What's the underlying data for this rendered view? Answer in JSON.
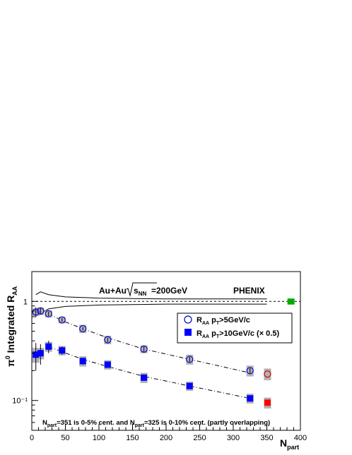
{
  "chart_data": {
    "type": "scatter",
    "title": "",
    "ylabel": "π⁰ Integrated R_AA",
    "xlabel": "N_part",
    "xlim": [
      0,
      400
    ],
    "ylim": [
      0.05,
      2.0
    ],
    "yscale": "log",
    "x_ticks": [
      "0",
      "50",
      "100",
      "150",
      "200",
      "250",
      "300",
      "350",
      "400"
    ],
    "y_ticks": [
      "10⁻¹",
      "1"
    ],
    "grid": false,
    "legend_position": "top-right",
    "annotations": {
      "system": "Au+Au",
      "energy": "=200GeV",
      "experiment": "PHENIX",
      "footnote": "N_part=351 is 0-5% cent. and N_part=325 is 0-10% cent. (partly overlapping)"
    },
    "series": [
      {
        "name": "R_AA p_T>5GeV/c",
        "marker": "open-circle",
        "color": "#0000cc",
        "x": [
          6,
          13,
          25,
          45,
          76,
          113,
          167,
          235,
          325
        ],
        "y": [
          0.78,
          0.8,
          0.75,
          0.65,
          0.53,
          0.41,
          0.33,
          0.26,
          0.2
        ],
        "stat_err": [
          0.09,
          0.06,
          0.04,
          0.03,
          0.02,
          0.02,
          0.02,
          0.015,
          0.012
        ],
        "sys_err": [
          0.07,
          0.07,
          0.06,
          0.05,
          0.05,
          0.04,
          0.03,
          0.03,
          0.025
        ]
      },
      {
        "name": "R_AA p_T>10GeV/c (× 0.5)",
        "marker": "filled-square",
        "color": "#0000ff",
        "x": [
          6,
          13,
          25,
          45,
          76,
          113,
          167,
          235,
          325
        ],
        "y": [
          0.29,
          0.3,
          0.35,
          0.32,
          0.25,
          0.23,
          0.17,
          0.14,
          0.105
        ],
        "stat_err": [
          0.09,
          0.07,
          0.05,
          0.03,
          0.02,
          0.015,
          0.012,
          0.01,
          0.008
        ],
        "sys_err": [
          0.05,
          0.04,
          0.04,
          0.035,
          0.03,
          0.025,
          0.02,
          0.015,
          0.012
        ]
      },
      {
        "name": "",
        "marker": "open-circle",
        "color": "#cc0000",
        "x": [
          351
        ],
        "y": [
          0.185
        ],
        "sys_err": [
          0.025
        ]
      },
      {
        "name": "",
        "marker": "filled-square",
        "color": "#ff0000",
        "x": [
          351
        ],
        "y": [
          0.095
        ],
        "sys_err": [
          0.012
        ]
      }
    ],
    "fit_curves": [
      {
        "style": "dash-dot",
        "x": [
          25,
          45,
          76,
          113,
          167,
          235,
          325
        ],
        "y": [
          0.75,
          0.64,
          0.53,
          0.43,
          0.33,
          0.26,
          0.19
        ]
      },
      {
        "style": "dash-dot",
        "x": [
          25,
          45,
          76,
          113,
          167,
          235,
          325
        ],
        "y": [
          0.35,
          0.31,
          0.26,
          0.22,
          0.175,
          0.14,
          0.105
        ]
      }
    ],
    "normalization_band": {
      "upper": {
        "x": [
          6,
          13,
          25,
          50,
          100,
          150,
          200,
          250,
          300,
          350
        ],
        "y": [
          1.17,
          1.25,
          1.17,
          1.11,
          1.08,
          1.07,
          1.06,
          1.06,
          1.06,
          1.06
        ]
      },
      "lower": {
        "x": [
          6,
          13,
          25,
          50,
          100,
          150,
          200,
          250,
          300,
          350
        ],
        "y": [
          0.83,
          0.76,
          0.84,
          0.89,
          0.92,
          0.93,
          0.94,
          0.94,
          0.94,
          0.94
        ]
      }
    },
    "reference_line": {
      "y": 1,
      "style": "dashed"
    },
    "global_uncertainty_box": {
      "x": 386,
      "y": 1,
      "low": 0.93,
      "high": 1.07,
      "color": "#00aa00"
    }
  }
}
